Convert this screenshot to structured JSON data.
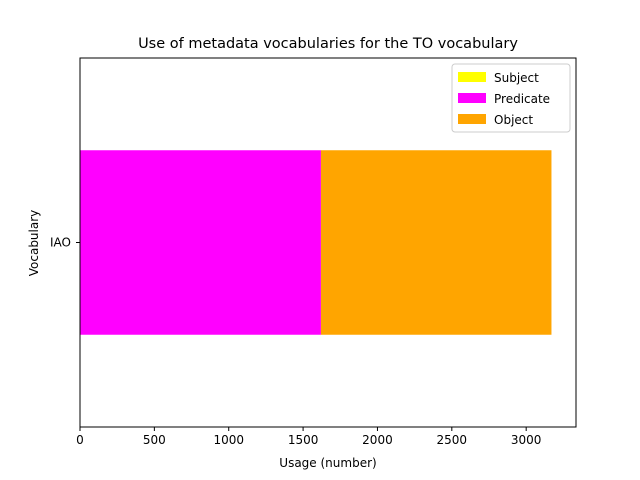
{
  "chart_data": {
    "type": "bar",
    "orientation": "horizontal",
    "stacked": true,
    "title": "Use of metadata vocabularies for the TO vocabulary",
    "xlabel": "Usage (number)",
    "ylabel": "Vocabulary",
    "categories": [
      "IAO"
    ],
    "series": [
      {
        "name": "Subject",
        "values": [
          0
        ],
        "color": "#ffff00"
      },
      {
        "name": "Predicate",
        "values": [
          1620
        ],
        "color": "#ff00ff"
      },
      {
        "name": "Object",
        "values": [
          1550
        ],
        "color": "#ffa500"
      }
    ],
    "xlim": [
      0,
      3335
    ],
    "xticks": [
      0,
      500,
      1000,
      1500,
      2000,
      2500,
      3000
    ],
    "grid": false,
    "legend_position": "top-right"
  }
}
